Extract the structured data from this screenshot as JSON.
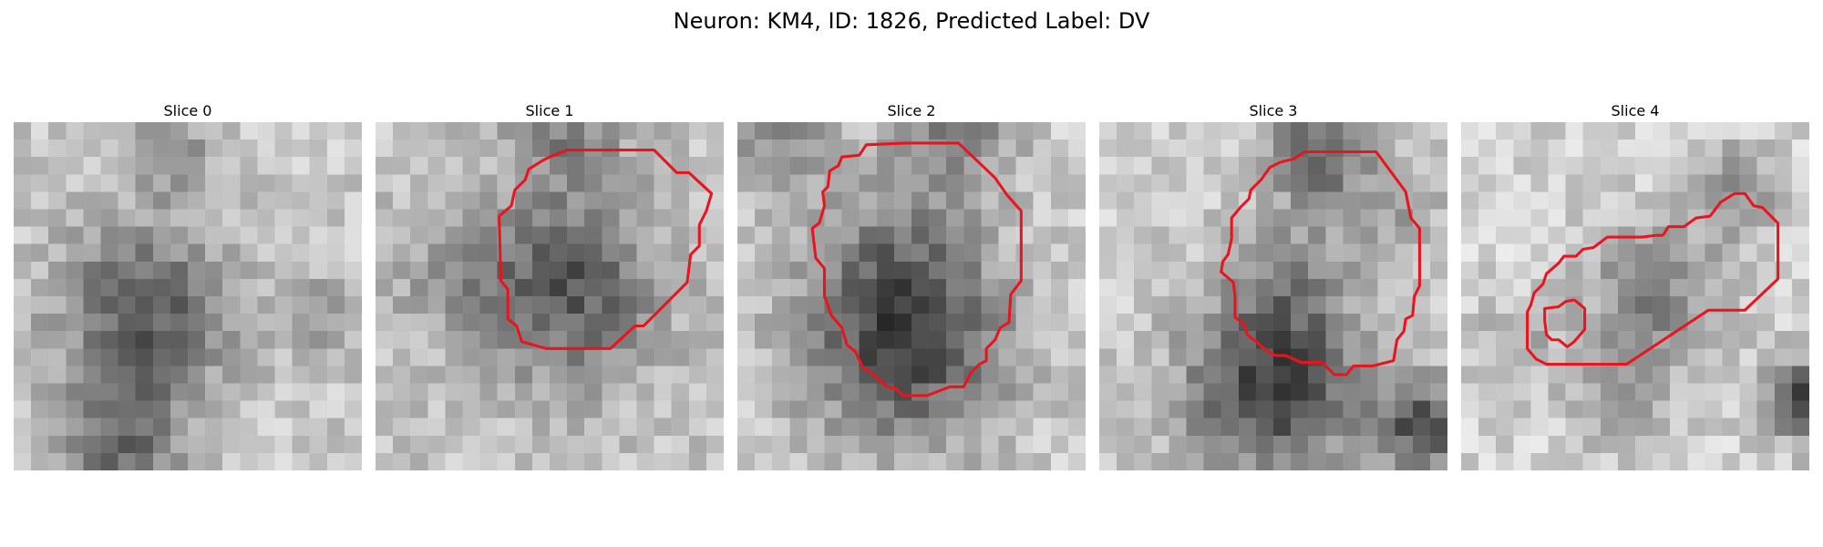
{
  "figure": {
    "title": "Neuron: KM4, ID: 1826, Predicted Label: DV"
  },
  "colors": {
    "contour": "#e8141e",
    "background": "#ffffff"
  },
  "panels": [
    {
      "title": "Slice 0",
      "image_icon": "grayscale-microscopy-image",
      "contours": []
    },
    {
      "title": "Slice 1",
      "image_icon": "grayscale-microscopy-image",
      "contours": [
        [
          [
            10.0,
            2.0
          ],
          [
            11.0,
            1.6
          ],
          [
            16.0,
            1.6
          ],
          [
            17.3,
            2.9
          ],
          [
            18.0,
            2.9
          ],
          [
            19.3,
            4.1
          ],
          [
            19.0,
            5.1
          ],
          [
            18.6,
            5.9
          ],
          [
            18.6,
            7.1
          ],
          [
            18.1,
            7.6
          ],
          [
            17.9,
            9.2
          ],
          [
            15.4,
            11.7
          ],
          [
            14.9,
            11.7
          ],
          [
            13.5,
            13.0
          ],
          [
            9.8,
            13.0
          ],
          [
            8.4,
            12.6
          ],
          [
            8.1,
            11.7
          ],
          [
            7.6,
            11.3
          ],
          [
            7.6,
            9.6
          ],
          [
            7.2,
            9.1
          ],
          [
            7.1,
            5.4
          ],
          [
            7.8,
            4.8
          ],
          [
            8.0,
            3.9
          ],
          [
            8.6,
            3.3
          ],
          [
            8.8,
            2.7
          ],
          [
            9.6,
            2.2
          ],
          [
            10.0,
            2.0
          ]
        ]
      ]
    },
    {
      "title": "Slice 2",
      "image_icon": "grayscale-microscopy-image",
      "contours": [
        [
          [
            10.0,
            1.2
          ],
          [
            12.7,
            1.2
          ],
          [
            14.8,
            3.2
          ],
          [
            15.5,
            4.2
          ],
          [
            16.3,
            5.1
          ],
          [
            16.3,
            9.1
          ],
          [
            15.7,
            9.9
          ],
          [
            15.6,
            11.5
          ],
          [
            15.1,
            11.8
          ],
          [
            14.8,
            12.5
          ],
          [
            14.3,
            13.0
          ],
          [
            14.3,
            13.7
          ],
          [
            13.9,
            13.9
          ],
          [
            13.4,
            14.4
          ],
          [
            13.0,
            15.2
          ],
          [
            12.2,
            15.2
          ],
          [
            10.9,
            15.7
          ],
          [
            9.5,
            15.7
          ],
          [
            9.1,
            15.3
          ],
          [
            8.6,
            15.2
          ],
          [
            7.7,
            14.4
          ],
          [
            7.2,
            14.1
          ],
          [
            6.8,
            13.2
          ],
          [
            6.3,
            12.8
          ],
          [
            6.0,
            11.8
          ],
          [
            5.4,
            11.1
          ],
          [
            5.0,
            10.0
          ],
          [
            5.0,
            8.4
          ],
          [
            4.5,
            7.8
          ],
          [
            4.3,
            6.1
          ],
          [
            4.7,
            5.8
          ],
          [
            5.0,
            4.8
          ],
          [
            4.9,
            4.0
          ],
          [
            5.2,
            3.7
          ],
          [
            5.3,
            2.8
          ],
          [
            5.8,
            2.5
          ],
          [
            6.0,
            2.0
          ],
          [
            7.0,
            1.9
          ],
          [
            7.4,
            1.3
          ],
          [
            9.7,
            1.2
          ],
          [
            10.0,
            1.2
          ]
        ]
      ]
    },
    {
      "title": "Slice 3",
      "image_icon": "grayscale-microscopy-image",
      "contours": [
        [
          [
            11.8,
            1.7
          ],
          [
            15.9,
            1.7
          ],
          [
            17.6,
            4.0
          ],
          [
            17.9,
            5.5
          ],
          [
            18.4,
            6.1
          ],
          [
            18.4,
            9.4
          ],
          [
            18.1,
            10.0
          ],
          [
            18.0,
            11.1
          ],
          [
            17.6,
            11.3
          ],
          [
            17.5,
            12.0
          ],
          [
            17.1,
            12.5
          ],
          [
            16.9,
            13.7
          ],
          [
            15.7,
            14.0
          ],
          [
            14.6,
            14.0
          ],
          [
            14.2,
            14.5
          ],
          [
            13.5,
            14.5
          ],
          [
            12.8,
            13.8
          ],
          [
            11.6,
            13.8
          ],
          [
            10.7,
            13.4
          ],
          [
            10.1,
            13.4
          ],
          [
            9.6,
            13.1
          ],
          [
            9.0,
            12.6
          ],
          [
            8.5,
            12.2
          ],
          [
            8.3,
            11.6
          ],
          [
            7.8,
            11.2
          ],
          [
            7.8,
            10.0
          ],
          [
            7.7,
            9.2
          ],
          [
            7.0,
            8.6
          ],
          [
            7.1,
            8.0
          ],
          [
            7.4,
            7.6
          ],
          [
            7.6,
            6.7
          ],
          [
            7.6,
            5.5
          ],
          [
            8.1,
            4.9
          ],
          [
            8.6,
            4.4
          ],
          [
            8.7,
            3.9
          ],
          [
            9.3,
            3.3
          ],
          [
            9.8,
            2.6
          ],
          [
            10.4,
            2.3
          ],
          [
            11.2,
            2.1
          ],
          [
            11.8,
            1.7
          ]
        ]
      ]
    },
    {
      "title": "Slice 4",
      "image_icon": "grayscale-microscopy-image",
      "contours": [
        [
          [
            11.6,
            6.5
          ],
          [
            11.9,
            6.0
          ],
          [
            12.8,
            6.0
          ],
          [
            13.5,
            5.5
          ],
          [
            14.3,
            5.4
          ],
          [
            14.9,
            4.6
          ],
          [
            15.7,
            4.1
          ],
          [
            16.3,
            4.1
          ],
          [
            16.8,
            4.8
          ],
          [
            17.3,
            4.9
          ],
          [
            18.2,
            5.8
          ],
          [
            18.2,
            9.0
          ],
          [
            16.3,
            10.8
          ],
          [
            14.2,
            10.8
          ],
          [
            9.5,
            13.9
          ],
          [
            4.9,
            13.9
          ],
          [
            4.3,
            13.6
          ],
          [
            3.8,
            13.0
          ],
          [
            3.8,
            10.9
          ],
          [
            4.0,
            10.5
          ],
          [
            4.2,
            9.8
          ],
          [
            4.7,
            9.3
          ],
          [
            4.9,
            8.7
          ],
          [
            5.6,
            8.1
          ],
          [
            5.9,
            7.7
          ],
          [
            6.6,
            7.7
          ],
          [
            7.0,
            7.3
          ],
          [
            7.6,
            7.2
          ],
          [
            8.4,
            6.6
          ],
          [
            10.4,
            6.6
          ],
          [
            11.2,
            6.5
          ],
          [
            11.6,
            6.5
          ]
        ],
        [
          [
            6.5,
            10.2
          ],
          [
            7.1,
            10.7
          ],
          [
            7.1,
            11.9
          ],
          [
            6.5,
            12.6
          ],
          [
            6.1,
            12.9
          ],
          [
            5.6,
            12.5
          ],
          [
            5.2,
            12.5
          ],
          [
            4.9,
            12.2
          ],
          [
            4.8,
            11.4
          ],
          [
            4.8,
            10.7
          ],
          [
            5.6,
            10.6
          ],
          [
            6.0,
            10.3
          ],
          [
            6.5,
            10.2
          ]
        ]
      ]
    }
  ]
}
